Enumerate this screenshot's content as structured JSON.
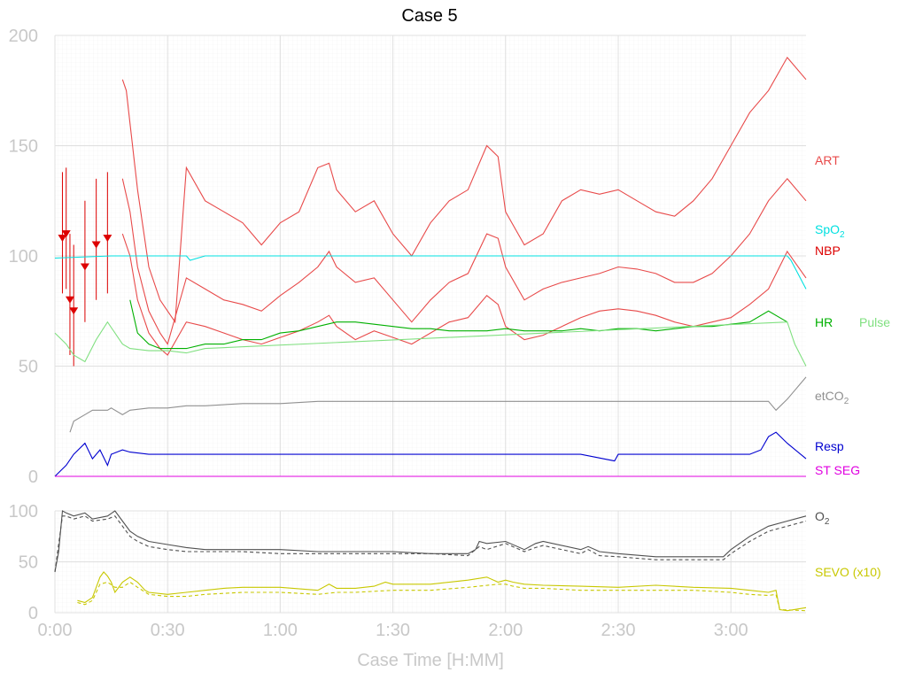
{
  "chart_data": [
    {
      "type": "line",
      "title": "Case 5",
      "ylim": [
        0,
        200
      ],
      "y_ticks": [
        "0",
        "50",
        "100",
        "150",
        "200"
      ],
      "grid": true,
      "legend_placement": "right",
      "series": [
        {
          "name": "ART",
          "color": "#e84a4a",
          "x": [
            18,
            19,
            20,
            22,
            25,
            28,
            30,
            32,
            35,
            40,
            45,
            50,
            55,
            60,
            65,
            70,
            73,
            75,
            80,
            85,
            90,
            95,
            100,
            105,
            110,
            115,
            118,
            120,
            125,
            130,
            135,
            140,
            145,
            150,
            155,
            160,
            165,
            170,
            175,
            180,
            185,
            190,
            195,
            200
          ],
          "y": [
            180,
            175,
            160,
            130,
            95,
            80,
            75,
            70,
            140,
            125,
            120,
            115,
            105,
            115,
            120,
            140,
            142,
            130,
            120,
            125,
            110,
            100,
            115,
            125,
            130,
            150,
            145,
            120,
            105,
            110,
            125,
            130,
            128,
            130,
            125,
            120,
            118,
            125,
            135,
            150,
            165,
            175,
            190,
            180
          ]
        },
        {
          "name": "ART",
          "color": "#e84a4a",
          "x": [
            18,
            20,
            22,
            25,
            28,
            30,
            35,
            40,
            45,
            50,
            55,
            60,
            65,
            70,
            73,
            75,
            80,
            85,
            90,
            95,
            100,
            105,
            110,
            115,
            118,
            120,
            125,
            130,
            135,
            140,
            145,
            150,
            155,
            160,
            165,
            170,
            175,
            180,
            185,
            190,
            195,
            200
          ],
          "y": [
            135,
            120,
            95,
            75,
            65,
            60,
            90,
            85,
            80,
            78,
            75,
            82,
            88,
            95,
            102,
            95,
            88,
            90,
            80,
            70,
            80,
            88,
            92,
            110,
            108,
            95,
            80,
            85,
            88,
            90,
            92,
            95,
            94,
            92,
            88,
            88,
            92,
            100,
            110,
            125,
            135,
            125
          ]
        },
        {
          "name": "ART",
          "color": "#e84a4a",
          "x": [
            18,
            20,
            22,
            25,
            28,
            30,
            35,
            40,
            45,
            50,
            55,
            60,
            65,
            70,
            73,
            75,
            80,
            85,
            90,
            95,
            100,
            105,
            110,
            115,
            118,
            120,
            125,
            130,
            135,
            140,
            145,
            150,
            155,
            160,
            165,
            170,
            175,
            180,
            185,
            190,
            195,
            200
          ],
          "y": [
            110,
            100,
            80,
            65,
            58,
            55,
            70,
            68,
            65,
            62,
            60,
            63,
            66,
            70,
            73,
            68,
            62,
            66,
            63,
            60,
            65,
            70,
            72,
            82,
            78,
            68,
            62,
            64,
            68,
            72,
            75,
            76,
            75,
            73,
            70,
            68,
            70,
            72,
            78,
            85,
            102,
            90
          ]
        },
        {
          "name": "NBP",
          "color": "#dd0000",
          "x": [
            2,
            3,
            4,
            5,
            8,
            11,
            14
          ],
          "y": [
            108,
            110,
            80,
            75,
            95,
            105,
            108
          ]
        },
        {
          "name": "SpO2",
          "color": "#00e0e0",
          "x": [
            0,
            15,
            18,
            35,
            36,
            40,
            100,
            150,
            195,
            196,
            200
          ],
          "y": [
            99,
            100,
            100,
            100,
            98,
            100,
            100,
            100,
            100,
            98,
            85
          ]
        },
        {
          "name": "HR",
          "color": "#00b000",
          "x": [
            20,
            22,
            25,
            28,
            30,
            35,
            40,
            45,
            50,
            55,
            60,
            65,
            70,
            75,
            80,
            85,
            90,
            95,
            100,
            105,
            110,
            115,
            120,
            125,
            130,
            135,
            140,
            145,
            150,
            155,
            160,
            165,
            170,
            175,
            180,
            185,
            190,
            195
          ],
          "y": [
            80,
            65,
            60,
            58,
            58,
            58,
            60,
            60,
            62,
            62,
            65,
            66,
            68,
            70,
            70,
            69,
            68,
            67,
            67,
            66,
            66,
            66,
            67,
            66,
            66,
            66,
            67,
            66,
            67,
            67,
            66,
            67,
            68,
            68,
            69,
            70,
            75,
            70
          ]
        },
        {
          "name": "Pulse",
          "color": "#80e080",
          "x": [
            0,
            3,
            5,
            8,
            11,
            14,
            18,
            20,
            25,
            30,
            35,
            40,
            195,
            197,
            200
          ],
          "y": [
            65,
            60,
            55,
            52,
            62,
            70,
            60,
            58,
            57,
            57,
            56,
            58,
            70,
            60,
            50
          ]
        },
        {
          "name": "etCO2",
          "color": "#909090",
          "x": [
            4,
            5,
            8,
            10,
            14,
            15,
            18,
            20,
            25,
            30,
            35,
            40,
            50,
            60,
            70,
            80,
            90,
            100,
            120,
            140,
            150,
            160,
            170,
            180,
            190,
            192,
            195,
            200
          ],
          "y": [
            20,
            25,
            28,
            30,
            30,
            31,
            28,
            30,
            31,
            31,
            32,
            32,
            33,
            33,
            34,
            34,
            34,
            34,
            34,
            34,
            34,
            34,
            34,
            34,
            34,
            30,
            35,
            45
          ]
        },
        {
          "name": "Resp",
          "color": "#0000d0",
          "x": [
            0,
            3,
            5,
            8,
            10,
            12,
            14,
            15,
            18,
            20,
            25,
            30,
            40,
            50,
            60,
            70,
            80,
            90,
            100,
            120,
            140,
            149,
            150,
            160,
            170,
            180,
            185,
            188,
            190,
            192,
            195,
            200
          ],
          "y": [
            0,
            5,
            10,
            15,
            8,
            12,
            5,
            10,
            12,
            11,
            10,
            10,
            10,
            10,
            10,
            10,
            10,
            10,
            10,
            10,
            10,
            7,
            10,
            10,
            10,
            10,
            10,
            12,
            18,
            20,
            15,
            8
          ]
        },
        {
          "name": "ST SEG",
          "color": "#e000e0",
          "x": [
            0,
            200
          ],
          "y": [
            0,
            0
          ]
        }
      ]
    },
    {
      "type": "line",
      "xlabel": "Case Time [H:MM]",
      "x_ticks": [
        "0:00",
        "0:30",
        "1:00",
        "1:30",
        "2:00",
        "2:30",
        "3:00"
      ],
      "x_tick_minutes": [
        0,
        30,
        60,
        90,
        120,
        150,
        180
      ],
      "xlim_minutes": [
        0,
        200
      ],
      "ylim": [
        0,
        100
      ],
      "y_ticks": [
        "0",
        "50",
        "100"
      ],
      "grid": true,
      "legend_placement": "right",
      "series": [
        {
          "name": "O2",
          "color": "#505050",
          "dash": false,
          "x": [
            0,
            1,
            2,
            3,
            5,
            8,
            10,
            14,
            16,
            18,
            20,
            22,
            25,
            30,
            35,
            40,
            50,
            60,
            70,
            80,
            90,
            100,
            110,
            112,
            113,
            115,
            120,
            125,
            128,
            130,
            140,
            142,
            145,
            150,
            160,
            170,
            178,
            180,
            185,
            190,
            195,
            200
          ],
          "y": [
            40,
            60,
            100,
            98,
            95,
            98,
            92,
            95,
            100,
            90,
            80,
            75,
            70,
            67,
            64,
            62,
            62,
            62,
            60,
            60,
            60,
            58,
            58,
            62,
            70,
            68,
            70,
            62,
            68,
            70,
            62,
            65,
            60,
            58,
            55,
            55,
            55,
            62,
            75,
            85,
            90,
            95
          ]
        },
        {
          "name": "",
          "color": "#505050",
          "dash": true,
          "x": [
            0,
            2,
            3,
            5,
            8,
            10,
            14,
            16,
            18,
            20,
            22,
            25,
            30,
            35,
            40,
            50,
            60,
            70,
            80,
            90,
            100,
            110,
            113,
            115,
            120,
            125,
            128,
            130,
            140,
            142,
            145,
            150,
            160,
            170,
            178,
            180,
            185,
            190,
            195,
            200
          ],
          "y": [
            40,
            95,
            95,
            92,
            95,
            90,
            92,
            95,
            85,
            75,
            70,
            65,
            62,
            60,
            60,
            60,
            58,
            58,
            58,
            58,
            58,
            56,
            65,
            62,
            68,
            60,
            64,
            66,
            58,
            62,
            56,
            55,
            52,
            52,
            52,
            58,
            70,
            80,
            85,
            90
          ]
        },
        {
          "name": "SEVO (x10)",
          "color": "#c8c800",
          "dash": false,
          "x": [
            6,
            8,
            10,
            12,
            13,
            14,
            15,
            16,
            18,
            20,
            22,
            24,
            25,
            30,
            35,
            40,
            45,
            50,
            60,
            70,
            73,
            75,
            80,
            85,
            88,
            90,
            95,
            100,
            110,
            115,
            118,
            120,
            122,
            125,
            130,
            140,
            150,
            160,
            170,
            180,
            185,
            190,
            192,
            193,
            195,
            200
          ],
          "y": [
            12,
            10,
            15,
            35,
            40,
            36,
            30,
            20,
            30,
            35,
            30,
            22,
            20,
            18,
            20,
            22,
            24,
            25,
            25,
            22,
            28,
            24,
            24,
            26,
            30,
            28,
            28,
            28,
            32,
            35,
            30,
            32,
            30,
            28,
            27,
            26,
            25,
            27,
            25,
            24,
            22,
            20,
            22,
            3,
            2,
            5
          ]
        },
        {
          "name": "",
          "color": "#c8c800",
          "dash": true,
          "x": [
            6,
            8,
            10,
            12,
            14,
            16,
            18,
            20,
            22,
            25,
            30,
            35,
            40,
            50,
            60,
            70,
            75,
            80,
            90,
            100,
            110,
            118,
            120,
            122,
            125,
            130,
            140,
            150,
            160,
            170,
            180,
            185,
            190,
            192,
            193,
            200
          ],
          "y": [
            10,
            8,
            12,
            28,
            30,
            25,
            25,
            30,
            25,
            18,
            16,
            16,
            18,
            20,
            20,
            18,
            20,
            20,
            22,
            22,
            25,
            28,
            28,
            26,
            24,
            24,
            22,
            22,
            22,
            22,
            20,
            18,
            17,
            18,
            3,
            2
          ]
        }
      ]
    }
  ]
}
